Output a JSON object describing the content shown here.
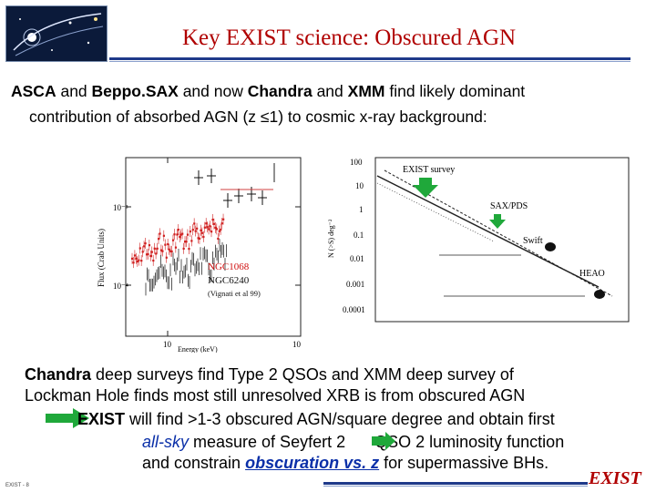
{
  "slide": {
    "title": "Key EXIST science: Obscured AGN",
    "intro": {
      "p1": "ASCA",
      "and1": " and ",
      "p2": "Beppo.SAX",
      "and2": " and now ",
      "p3": "Chandra",
      "and3": " and ",
      "p4": "XMM",
      "rest": " find likely dominant",
      "line2": "contribution of absorbed AGN (z ≤1) to cosmic x-ray background:"
    },
    "spectrum_plot": {
      "ylabel": "Flux (Crab Units)",
      "xlabel": "Energy (keV)",
      "tick_1e3": "10⁻³",
      "tick_1e4": "10⁻⁴",
      "tick_10a": "10",
      "tick_10b": "10",
      "label_ngc1068": "NGC1068",
      "label_ngc6240": "NGC6240",
      "label_ref": "(Vignati et al 99)"
    },
    "logns_plot": {
      "ylabel": "N (>S) deg⁻²",
      "ytick_100": "100",
      "ytick_10": "10",
      "ytick_1": "1",
      "ytick_01": "0.1",
      "ytick_001": "0.01",
      "ytick_0001": "0.001",
      "ytick_00001": "0.0001",
      "label_exist": "EXIST survey",
      "label_sax": "SAX/PDS",
      "label_swift": "Swift",
      "label_heao": "HEAO"
    },
    "body": {
      "chandra": "Chandra",
      "line1_rest": " deep surveys find Type 2 QSOs and XMM deep survey of",
      "line2": "Lockman Hole finds most still unresolved XRB is from obscured AGN",
      "exist": "EXIST",
      "line3_rest": " will find >1-3 obscured AGN/square degree and obtain first",
      "allsky": "all-sky",
      "line4_mid": " measure of Seyfert 2 ",
      "line4_end": " QSO 2 luminosity function",
      "line5_a": "and constrain ",
      "obscuration": "obscuration vs. z",
      "line5_b": " for supermassive BHs."
    },
    "brand": "EXIST",
    "footer": "EXIST - 8"
  },
  "colors": {
    "title": "#b00000",
    "accent_blue": "#0a2fa8",
    "rule": "#1f3a8a",
    "arrow_green": "#1fa83a"
  }
}
